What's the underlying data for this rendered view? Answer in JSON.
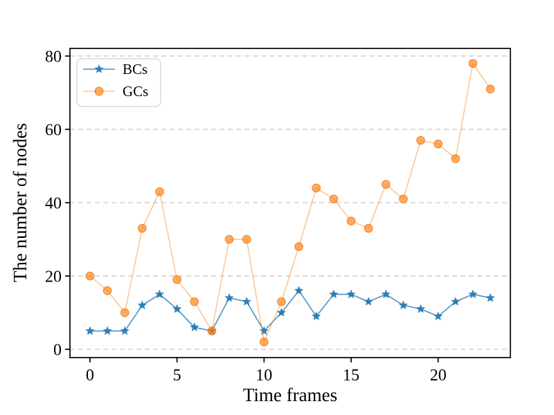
{
  "chart_data": {
    "type": "line",
    "title": "",
    "xlabel": "Time frames",
    "ylabel": "The number of nodes",
    "x": [
      0,
      1,
      2,
      3,
      4,
      5,
      6,
      7,
      8,
      9,
      10,
      11,
      12,
      13,
      14,
      15,
      16,
      17,
      18,
      19,
      20,
      21,
      22,
      23
    ],
    "series": [
      {
        "name": "BCs",
        "marker": "star",
        "line_color": "#1f77b4",
        "line_opacity": 0.8,
        "marker_color": "#1f77b4",
        "marker_opacity": 0.9,
        "values": [
          5,
          5,
          5,
          12,
          15,
          11,
          6,
          5,
          14,
          13,
          5,
          10,
          16,
          9,
          15,
          15,
          13,
          15,
          12,
          11,
          9,
          13,
          15,
          14
        ]
      },
      {
        "name": "GCs",
        "marker": "circle",
        "line_color": "#ff7f0e",
        "line_opacity": 0.45,
        "marker_color": "#ff7f0e",
        "marker_opacity": 0.65,
        "values": [
          20,
          16,
          10,
          33,
          43,
          19,
          13,
          5,
          30,
          30,
          2,
          13,
          28,
          44,
          41,
          35,
          33,
          45,
          41,
          57,
          56,
          52,
          78,
          71
        ]
      }
    ],
    "xticks": [
      0,
      5,
      10,
      15,
      20
    ],
    "yticks": [
      0,
      20,
      40,
      60,
      80
    ],
    "xlim": [
      -1.15,
      24.15
    ],
    "ylim": [
      -2.26,
      82.08
    ],
    "grid": "horizontal-dashed",
    "grid_color": "#b5b5b5",
    "legend_position": "upper-left"
  }
}
